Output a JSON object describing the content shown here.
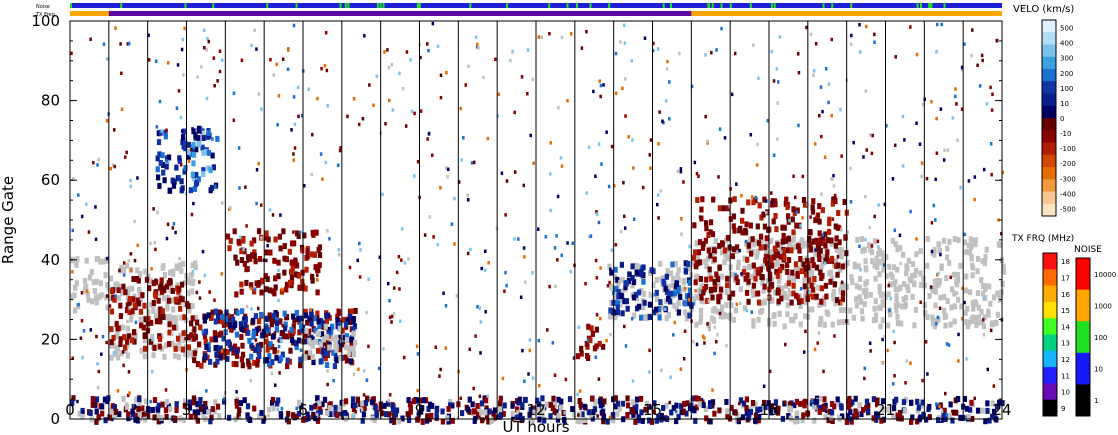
{
  "strip_labels": {
    "noise": "Noise",
    "tx": "TX Freq"
  },
  "chart_data": {
    "type": "heatmap",
    "xlabel": "UT hours",
    "ylabel": "Range Gate",
    "xlim": [
      0,
      24
    ],
    "ylim": [
      0,
      100
    ],
    "x_ticks": [
      0,
      3,
      6,
      9,
      12,
      15,
      18,
      21,
      24
    ],
    "y_ticks": [
      0,
      20,
      40,
      60,
      80,
      100
    ],
    "scan_boundaries_hours": [
      1,
      2,
      3,
      4,
      5,
      6,
      7,
      8,
      9,
      10,
      11,
      12,
      13,
      14,
      15,
      16,
      17,
      18,
      19,
      20,
      21,
      22,
      23
    ],
    "regions": [
      {
        "t0": 0.0,
        "t1": 1.0,
        "g0": 28,
        "g1": 42,
        "kind": "ground"
      },
      {
        "t0": 1.0,
        "t1": 3.2,
        "g0": 16,
        "g1": 40,
        "kind": "ground"
      },
      {
        "t0": 1.0,
        "t1": 3.0,
        "g0": 18,
        "g1": 36,
        "kind": "neg"
      },
      {
        "t0": 2.2,
        "t1": 3.8,
        "g0": 58,
        "g1": 74,
        "kind": "pos"
      },
      {
        "t0": 3.0,
        "t1": 3.6,
        "g0": 62,
        "g1": 70,
        "kind": "light"
      },
      {
        "t0": 3.0,
        "t1": 7.3,
        "g0": 14,
        "g1": 28,
        "kind": "neg"
      },
      {
        "t0": 3.4,
        "t1": 7.3,
        "g0": 14,
        "g1": 28,
        "kind": "pos"
      },
      {
        "t0": 4.0,
        "t1": 6.4,
        "g0": 32,
        "g1": 48,
        "kind": "neg"
      },
      {
        "t0": 6.0,
        "t1": 7.4,
        "g0": 16,
        "g1": 24,
        "kind": "ground"
      },
      {
        "t0": 13.0,
        "t1": 13.7,
        "g0": 16,
        "g1": 24,
        "kind": "neg"
      },
      {
        "t0": 13.8,
        "t1": 16.0,
        "g0": 26,
        "g1": 40,
        "kind": "ground"
      },
      {
        "t0": 13.8,
        "t1": 16.0,
        "g0": 26,
        "g1": 40,
        "kind": "pos"
      },
      {
        "t0": 16.0,
        "t1": 24.0,
        "g0": 24,
        "g1": 46,
        "kind": "ground"
      },
      {
        "t0": 16.0,
        "t1": 20.0,
        "g0": 30,
        "g1": 56,
        "kind": "neg"
      },
      {
        "t0": 0.0,
        "t1": 24.0,
        "g0": 0,
        "g1": 6,
        "kind": "near"
      }
    ],
    "velocity_colorbar": {
      "title": "VELO (km/s)",
      "ticks": [
        "500",
        "400",
        "300",
        "200",
        "100",
        "10",
        "0",
        "-10",
        "-100",
        "-200",
        "-300",
        "-400",
        "-500"
      ],
      "colors_top_to_bottom": [
        "#dff1ff",
        "#b3dcf5",
        "#7cc3ec",
        "#3aa0e0",
        "#1a6fd1",
        "#1236a8",
        "#0b1f8a",
        "#000064",
        "#640000",
        "#8a0000",
        "#b41e00",
        "#d04800",
        "#e36d00",
        "#f09a3c",
        "#f7c691",
        "#fde2c4"
      ]
    },
    "tx_freq_colorbar": {
      "title": "TX FRQ (MHz)",
      "ticks": [
        "18",
        "17",
        "16",
        "15",
        "14",
        "13",
        "12",
        "11",
        "10",
        "9"
      ],
      "colors_top_to_bottom": [
        "#ff1010",
        "#ff6a00",
        "#ffab00",
        "#ffe000",
        "#40ff20",
        "#00d080",
        "#14b4ff",
        "#2020ff",
        "#6a0ab4",
        "#000000"
      ]
    },
    "noise_colorbar": {
      "title": "NOISE",
      "ticks": [
        "10000",
        "1000",
        "100",
        "10",
        "1"
      ],
      "colors_top_to_bottom": [
        "#ff0000",
        "#ffa500",
        "#20e020",
        "#1818ff",
        "#000000"
      ]
    }
  }
}
